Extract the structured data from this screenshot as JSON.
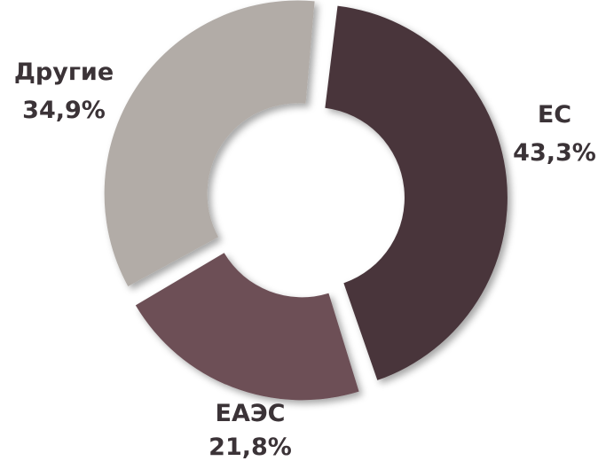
{
  "chart_data": {
    "type": "pie",
    "style": "donut",
    "title": "",
    "slices": [
      {
        "name": "ЕС",
        "value": 43.3,
        "label": "43,3%",
        "color": "#48353a"
      },
      {
        "name": "ЕАЭС",
        "value": 21.8,
        "label": "21,8%",
        "color": "#6d5057"
      },
      {
        "name": "Другие",
        "value": 34.9,
        "label": "34,9%",
        "color": "#b2aca7"
      }
    ]
  }
}
